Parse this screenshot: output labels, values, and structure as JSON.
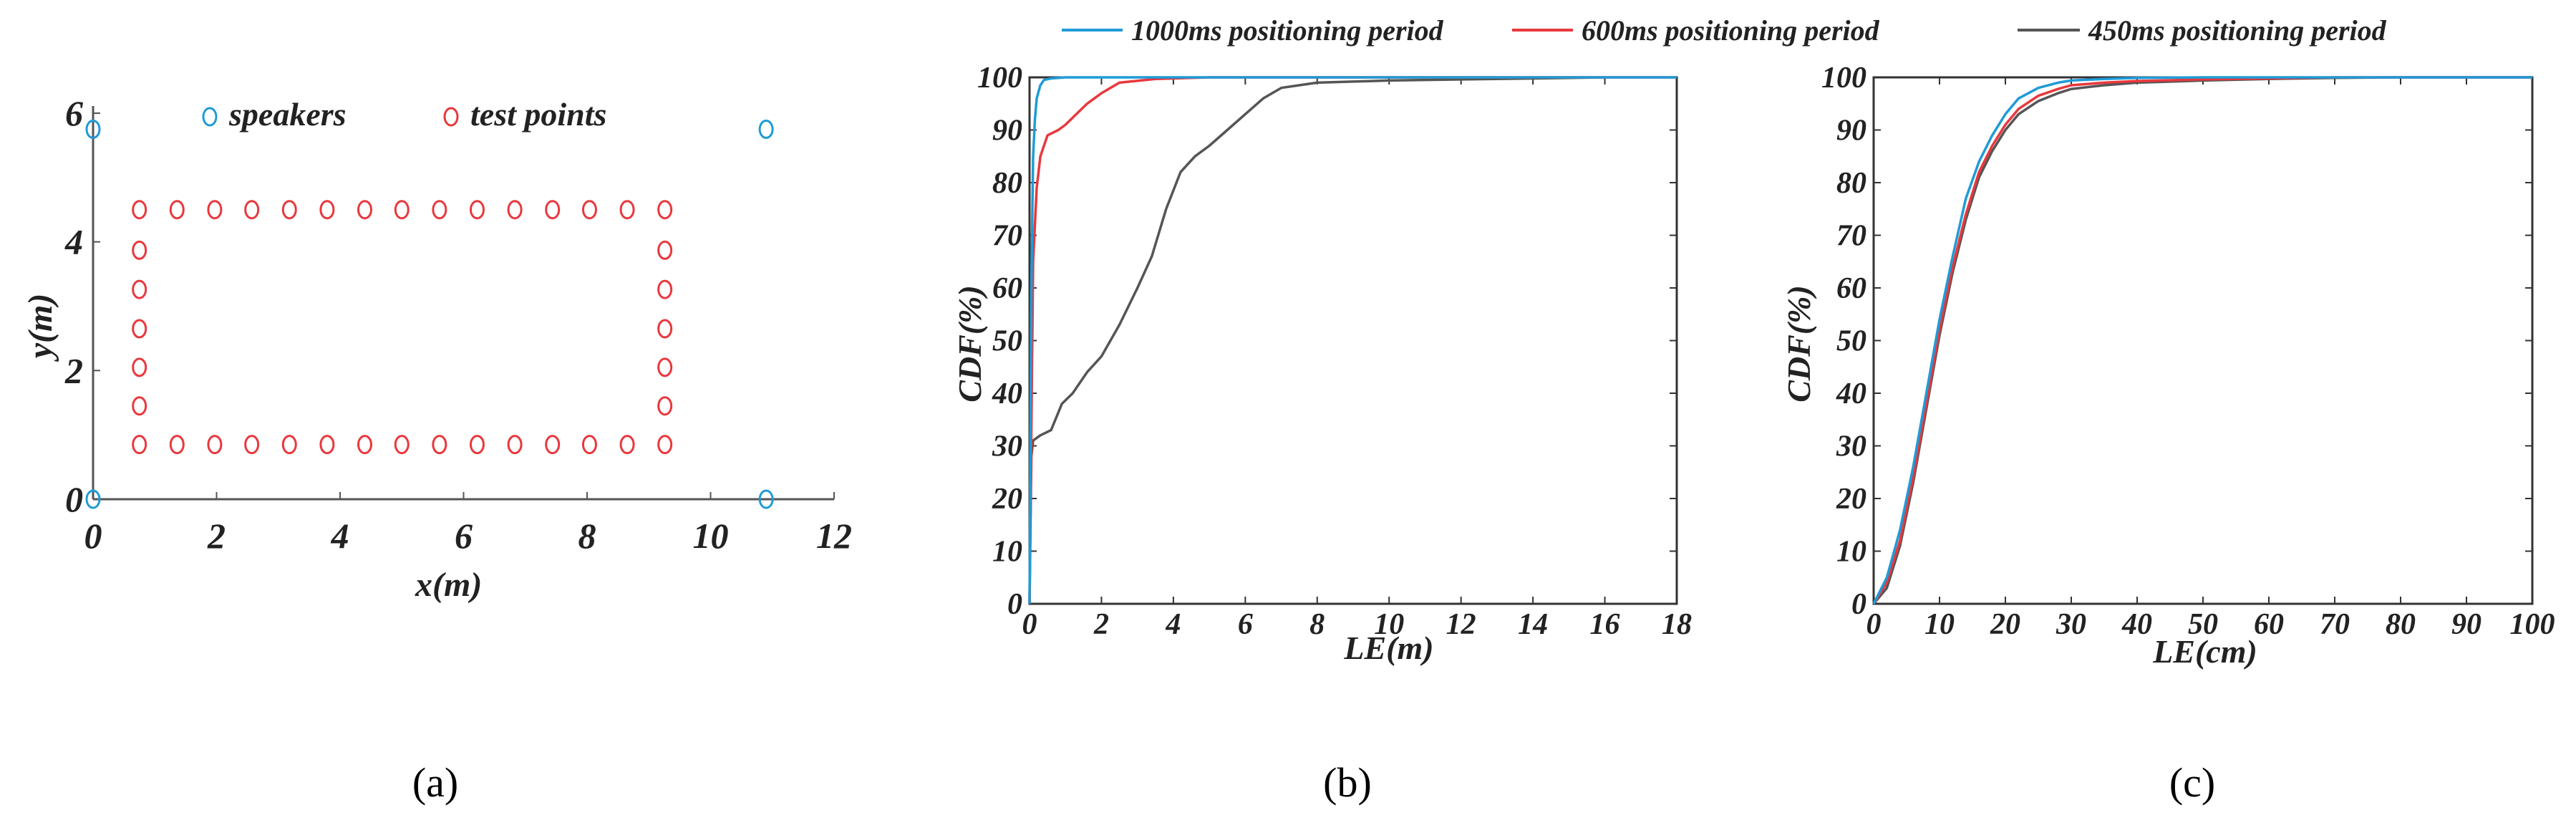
{
  "chart_data": [
    {
      "type": "scatter",
      "panel": "a",
      "caption": "(a)",
      "xlabel": "x(m)",
      "ylabel": "y(m)",
      "xlim": [
        0,
        12
      ],
      "ylim": [
        0,
        6
      ],
      "xticks": [
        "0",
        "2",
        "4",
        "6",
        "8",
        "10",
        "12"
      ],
      "yticks": [
        "0",
        "2",
        "4",
        "6"
      ],
      "legend": {
        "placement": "top",
        "entries": [
          "speakers",
          "test points"
        ]
      },
      "series": [
        {
          "name": "speakers",
          "color": "#1f9bd7",
          "points": [
            [
              0,
              5.75
            ],
            [
              10.9,
              5.75
            ],
            [
              0,
              0
            ],
            [
              10.9,
              0
            ]
          ]
        },
        {
          "name": "test points",
          "color": "#e8383d",
          "points": [
            [
              0.75,
              4.5
            ],
            [
              1.36,
              4.5
            ],
            [
              1.97,
              4.5
            ],
            [
              2.57,
              4.5
            ],
            [
              3.18,
              4.5
            ],
            [
              3.79,
              4.5
            ],
            [
              4.4,
              4.5
            ],
            [
              5.0,
              4.5
            ],
            [
              5.61,
              4.5
            ],
            [
              6.22,
              4.5
            ],
            [
              6.83,
              4.5
            ],
            [
              7.44,
              4.5
            ],
            [
              8.04,
              4.5
            ],
            [
              8.65,
              4.5
            ],
            [
              9.26,
              4.5
            ],
            [
              0.75,
              0.85
            ],
            [
              1.36,
              0.85
            ],
            [
              1.97,
              0.85
            ],
            [
              2.57,
              0.85
            ],
            [
              3.18,
              0.85
            ],
            [
              3.79,
              0.85
            ],
            [
              4.4,
              0.85
            ],
            [
              5.0,
              0.85
            ],
            [
              5.61,
              0.85
            ],
            [
              6.22,
              0.85
            ],
            [
              6.83,
              0.85
            ],
            [
              7.44,
              0.85
            ],
            [
              8.04,
              0.85
            ],
            [
              8.65,
              0.85
            ],
            [
              9.26,
              0.85
            ],
            [
              0.75,
              3.87
            ],
            [
              0.75,
              3.26
            ],
            [
              0.75,
              2.65
            ],
            [
              0.75,
              2.05
            ],
            [
              0.75,
              1.45
            ],
            [
              9.26,
              3.87
            ],
            [
              9.26,
              3.26
            ],
            [
              9.26,
              2.65
            ],
            [
              9.26,
              2.05
            ],
            [
              9.26,
              1.45
            ]
          ]
        }
      ]
    },
    {
      "type": "line",
      "panel": "b",
      "caption": "(b)",
      "xlabel": "LE(m)",
      "ylabel": "CDF(%)",
      "xlim": [
        0,
        18
      ],
      "ylim": [
        0,
        100
      ],
      "xticks": [
        "0",
        "2",
        "4",
        "6",
        "8",
        "10",
        "12",
        "14",
        "16",
        "18"
      ],
      "yticks": [
        "0",
        "10",
        "20",
        "30",
        "40",
        "50",
        "60",
        "70",
        "80",
        "90",
        "100"
      ],
      "series": [
        {
          "name": "1000ms positioning period",
          "color": "#1f9bd7",
          "x": [
            0,
            0.05,
            0.1,
            0.15,
            0.2,
            0.3,
            0.4,
            0.6,
            1.0,
            2.0,
            18
          ],
          "y": [
            0,
            60,
            85,
            92,
            96,
            98.5,
            99.5,
            99.8,
            100,
            100,
            100
          ]
        },
        {
          "name": "600ms positioning period",
          "color": "#e8383d",
          "x": [
            0,
            0.1,
            0.2,
            0.3,
            0.5,
            0.8,
            1.0,
            1.3,
            1.6,
            2.0,
            2.5,
            3.5,
            5.0,
            18
          ],
          "y": [
            0,
            65,
            79,
            85,
            89,
            90,
            91,
            93,
            95,
            97,
            99,
            99.7,
            100,
            100
          ]
        },
        {
          "name": "450ms positioning period",
          "color": "#555555",
          "x": [
            0,
            0.05,
            0.1,
            0.3,
            0.6,
            0.9,
            1.2,
            1.6,
            2.0,
            2.5,
            3.0,
            3.4,
            3.8,
            4.2,
            4.6,
            5.0,
            5.5,
            6.0,
            6.5,
            7.0,
            7.5,
            8.0,
            9.0,
            10.0,
            12.0,
            14.0,
            16.0
          ],
          "y": [
            0,
            28,
            31,
            32,
            33,
            38,
            40,
            44,
            47,
            53,
            60,
            66,
            75,
            82,
            85,
            87,
            90,
            93,
            96,
            98,
            98.5,
            99,
            99.2,
            99.4,
            99.6,
            99.8,
            100
          ]
        }
      ]
    },
    {
      "type": "line",
      "panel": "c",
      "caption": "(c)",
      "xlabel": "LE(cm)",
      "ylabel": "CDF(%)",
      "xlim": [
        0,
        100
      ],
      "ylim": [
        0,
        100
      ],
      "xticks": [
        "0",
        "10",
        "20",
        "30",
        "40",
        "50",
        "60",
        "70",
        "80",
        "90",
        "100"
      ],
      "yticks": [
        "0",
        "10",
        "20",
        "30",
        "40",
        "50",
        "60",
        "70",
        "80",
        "90",
        "100"
      ],
      "series": [
        {
          "name": "1000ms positioning period",
          "color": "#1f9bd7",
          "x": [
            0,
            2,
            4,
            6,
            8,
            10,
            12,
            14,
            16,
            18,
            20,
            22,
            25,
            28,
            30,
            35,
            40,
            50,
            60,
            100
          ],
          "y": [
            0,
            5,
            14,
            26,
            40,
            54,
            66,
            77,
            84,
            89,
            93,
            96,
            98,
            99,
            99.4,
            99.7,
            99.9,
            100,
            100,
            100
          ]
        },
        {
          "name": "600ms positioning period",
          "color": "#e8383d",
          "x": [
            0,
            2,
            4,
            6,
            8,
            10,
            12,
            14,
            16,
            18,
            20,
            22,
            25,
            28,
            30,
            35,
            40,
            50,
            60,
            70,
            100
          ],
          "y": [
            0,
            4,
            12,
            24,
            38,
            52,
            64,
            74,
            82,
            87,
            91,
            94,
            96.5,
            97.8,
            98.5,
            99,
            99.3,
            99.6,
            99.8,
            100,
            100
          ]
        },
        {
          "name": "450ms positioning period",
          "color": "#555555",
          "x": [
            0,
            2,
            4,
            6,
            8,
            10,
            12,
            14,
            16,
            18,
            20,
            22,
            25,
            28,
            30,
            35,
            40,
            50,
            60,
            70,
            80,
            100
          ],
          "y": [
            0,
            3,
            11,
            23,
            37,
            51,
            63,
            73,
            81,
            86,
            90,
            93,
            95.5,
            97,
            97.8,
            98.5,
            99,
            99.4,
            99.7,
            99.9,
            100,
            100
          ]
        }
      ]
    }
  ],
  "shared_legend": [
    {
      "label": "1000ms positioning period",
      "color": "#1f9bd7"
    },
    {
      "label": "600ms positioning period",
      "color": "#e8383d"
    },
    {
      "label": "450ms positioning period",
      "color": "#555555"
    }
  ]
}
